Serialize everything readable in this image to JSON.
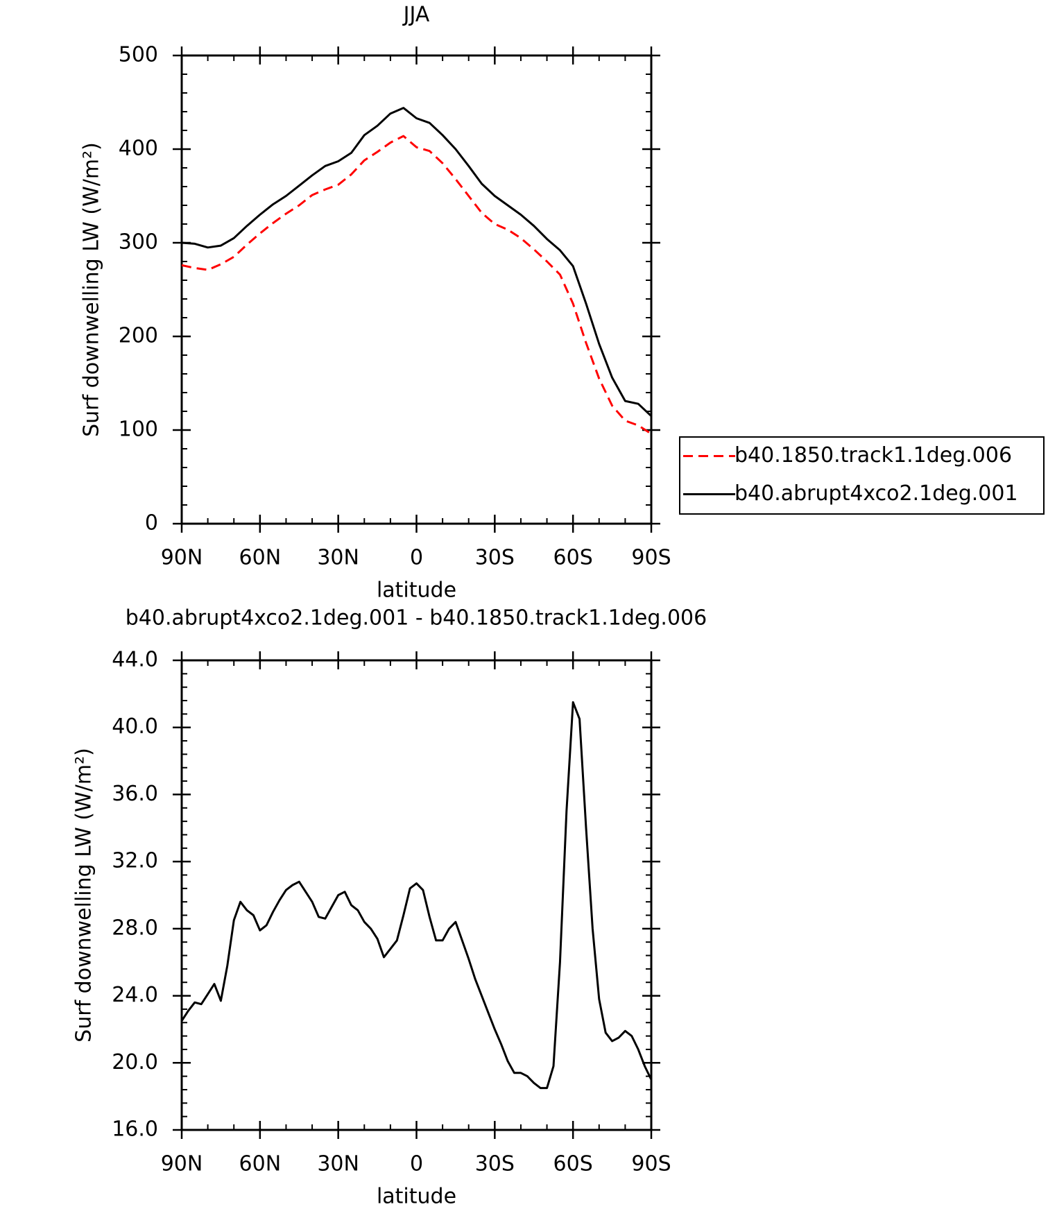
{
  "chart_data": [
    {
      "type": "line",
      "title": "JJA",
      "xlabel": "latitude",
      "ylabel": "Surf downwelling LW (W/m²)",
      "x": [
        90,
        85,
        80,
        75,
        70,
        65,
        60,
        55,
        50,
        45,
        40,
        35,
        30,
        25,
        20,
        15,
        10,
        5,
        0,
        -5,
        -10,
        -15,
        -20,
        -25,
        -30,
        -35,
        -40,
        -45,
        -50,
        -55,
        -60,
        -65,
        -70,
        -75,
        -80,
        -85,
        -90
      ],
      "series": [
        {
          "name": "b40.1850.track1.1deg.006",
          "color": "#ff0000",
          "line_style": "dashed",
          "values": [
            276,
            273,
            271,
            277,
            285,
            298,
            310,
            321,
            331,
            340,
            351,
            357,
            362,
            373,
            388,
            397,
            407,
            414,
            402,
            398,
            385,
            368,
            350,
            332,
            320,
            314,
            305,
            293,
            280,
            266,
            235,
            193,
            155,
            126,
            110,
            105,
            96
          ]
        },
        {
          "name": "b40.abrupt4xco2.1deg.001",
          "color": "#000000",
          "line_style": "solid",
          "values": [
            300,
            299,
            295,
            297,
            305,
            318,
            330,
            341,
            350,
            361,
            372,
            382,
            387,
            396,
            415,
            425,
            438,
            444,
            433,
            428,
            415,
            400,
            382,
            363,
            350,
            340,
            330,
            318,
            304,
            292,
            275,
            235,
            192,
            156,
            131,
            128,
            115
          ]
        }
      ],
      "xlim": [
        90,
        -90
      ],
      "xticks": [
        {
          "value": 90,
          "label": "90N"
        },
        {
          "value": 60,
          "label": "60N"
        },
        {
          "value": 30,
          "label": "30N"
        },
        0,
        {
          "value": -30,
          "label": "30S"
        },
        {
          "value": -60,
          "label": "60S"
        },
        {
          "value": -90,
          "label": "90S"
        }
      ],
      "ylim": [
        0,
        500
      ],
      "yticks": [
        0,
        100,
        200,
        300,
        400,
        500
      ],
      "legend": "right"
    },
    {
      "type": "line",
      "title": "b40.abrupt4xco2.1deg.001 - b40.1850.track1.1deg.006",
      "xlabel": "latitude",
      "ylabel": "Surf downwelling LW (W/m²)",
      "x": [
        90,
        87.5,
        85,
        82.5,
        80,
        77.5,
        75,
        72.5,
        70,
        67.5,
        65,
        62.5,
        60,
        57.5,
        55,
        52.5,
        50,
        47.5,
        45,
        42.5,
        40,
        37.5,
        35,
        32.5,
        30,
        27.5,
        25,
        22.5,
        20,
        17.5,
        15,
        12.5,
        10,
        7.5,
        5,
        2.5,
        0,
        -2.5,
        -5,
        -7.5,
        -10,
        -12.5,
        -15,
        -17.5,
        -20,
        -22.5,
        -25,
        -27.5,
        -30,
        -32.5,
        -35,
        -37.5,
        -40,
        -42.5,
        -45,
        -47.5,
        -50,
        -52.5,
        -55,
        -57.5,
        -60,
        -62.5,
        -65,
        -67.5,
        -70,
        -72.5,
        -75,
        -77.5,
        -80,
        -82.5,
        -85,
        -87.5,
        -90
      ],
      "series": [
        {
          "color": "#000000",
          "line_style": "solid",
          "values": [
            22.5,
            23.1,
            23.6,
            23.5,
            24.1,
            24.7,
            23.7,
            25.8,
            28.5,
            29.6,
            29.1,
            28.8,
            27.9,
            28.2,
            29.0,
            29.7,
            30.3,
            30.6,
            30.8,
            30.2,
            29.6,
            28.7,
            28.6,
            29.3,
            30.0,
            30.2,
            29.4,
            29.1,
            28.4,
            28.0,
            27.4,
            26.3,
            26.8,
            27.3,
            28.8,
            30.4,
            30.7,
            30.3,
            28.7,
            27.3,
            27.3,
            28.0,
            28.4,
            27.3,
            26.2,
            25.0,
            24.0,
            23.0,
            22.0,
            21.1,
            20.1,
            19.4,
            19.4,
            19.2,
            18.8,
            18.5,
            18.5,
            19.8,
            26.0,
            35.0,
            41.5,
            40.5,
            34.0,
            28.0,
            23.8,
            21.8,
            21.3,
            21.5,
            21.9,
            21.6,
            20.8,
            19.8,
            19.0
          ]
        }
      ],
      "xlim": [
        90,
        -90
      ],
      "xticks": [
        {
          "value": 90,
          "label": "90N"
        },
        {
          "value": 60,
          "label": "60N"
        },
        {
          "value": 30,
          "label": "30N"
        },
        0,
        {
          "value": -30,
          "label": "30S"
        },
        {
          "value": -60,
          "label": "60S"
        },
        {
          "value": -90,
          "label": "90S"
        }
      ],
      "ylim": [
        16,
        44
      ],
      "yticks": [
        {
          "value": 16,
          "label": "16.0"
        },
        {
          "value": 20,
          "label": "20.0"
        },
        {
          "value": 24,
          "label": "24.0"
        },
        {
          "value": 28,
          "label": "28.0"
        },
        {
          "value": 32,
          "label": "32.0"
        },
        {
          "value": 36,
          "label": "36.0"
        },
        {
          "value": 40,
          "label": "40.0"
        },
        {
          "value": 44,
          "label": "44.0"
        }
      ]
    }
  ]
}
